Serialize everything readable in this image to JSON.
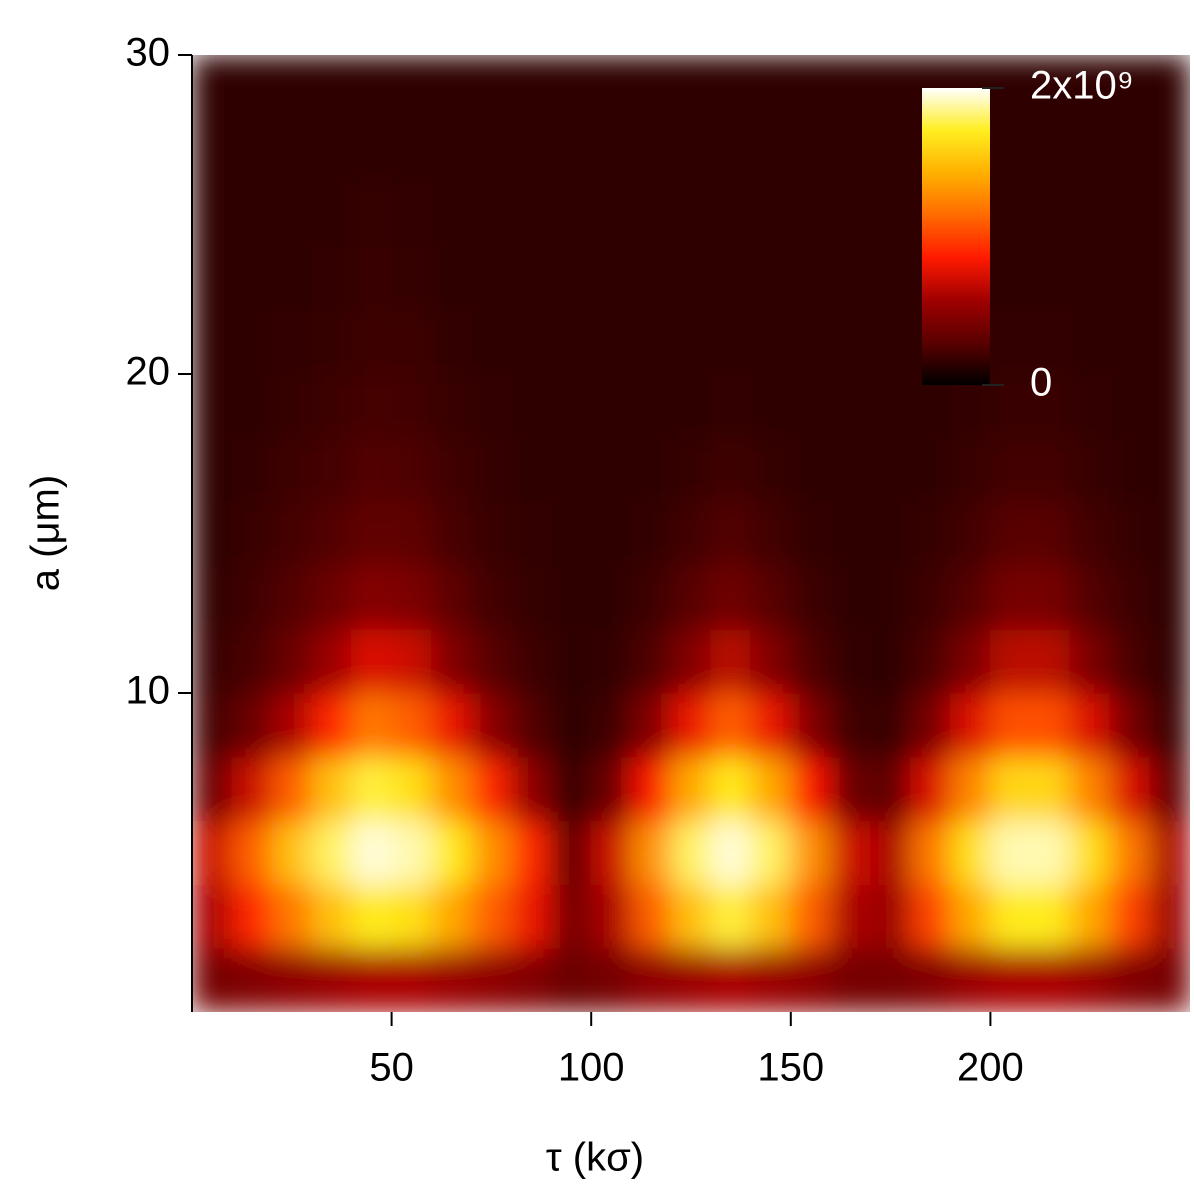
{
  "chart_data": {
    "type": "heatmap",
    "x_label": "τ (kσ)",
    "y_label": "a (μm)",
    "xlim": [
      0,
      250
    ],
    "ylim": [
      0,
      30
    ],
    "xticks": [
      50,
      100,
      150,
      200
    ],
    "yticks": [
      10,
      20,
      30
    ],
    "zlim": [
      0,
      2000000000.0
    ],
    "zticks": [
      0,
      {
        "value": 2000000000.0,
        "label": "2x10⁹"
      }
    ],
    "colormap": [
      "#000000",
      "#5a0000",
      "#a00000",
      "#ff1a00",
      "#ff6a00",
      "#ffb000",
      "#ffee20",
      "#ffffff"
    ],
    "x": [
      5,
      15,
      25,
      35,
      45,
      55,
      65,
      75,
      85,
      95,
      105,
      115,
      125,
      135,
      145,
      155,
      165,
      175,
      185,
      195,
      205,
      215,
      225,
      235,
      245
    ],
    "y": [
      1,
      3,
      5,
      7,
      9,
      11,
      13,
      15,
      17,
      19,
      21,
      23,
      25,
      27,
      29
    ],
    "z": [
      [
        400000000.0,
        600000000.0,
        700000000.0,
        350000000.0,
        220000000.0,
        180000000.0,
        160000000.0,
        150000000.0,
        150000000.0,
        150000000.0,
        150000000.0,
        150000000.0,
        150000000.0,
        150000000.0,
        150000000.0
      ],
      [
        450000000.0,
        900000000.0,
        1100000000.0,
        700000000.0,
        350000000.0,
        230000000.0,
        200000000.0,
        180000000.0,
        160000000.0,
        150000000.0,
        150000000.0,
        150000000.0,
        150000000.0,
        150000000.0,
        150000000.0
      ],
      [
        500000000.0,
        1200000000.0,
        1500000000.0,
        1100000000.0,
        600000000.0,
        350000000.0,
        260000000.0,
        220000000.0,
        190000000.0,
        170000000.0,
        160000000.0,
        150000000.0,
        150000000.0,
        150000000.0,
        150000000.0
      ],
      [
        550000000.0,
        1500000000.0,
        1800000000.0,
        1500000000.0,
        900000000.0,
        550000000.0,
        360000000.0,
        260000000.0,
        220000000.0,
        190000000.0,
        170000000.0,
        160000000.0,
        150000000.0,
        150000000.0,
        150000000.0
      ],
      [
        600000000.0,
        1700000000.0,
        1950000000.0,
        1750000000.0,
        1200000000.0,
        750000000.0,
        460000000.0,
        320000000.0,
        260000000.0,
        220000000.0,
        190000000.0,
        180000000.0,
        170000000.0,
        150000000.0,
        150000000.0
      ],
      [
        600000000.0,
        1650000000.0,
        1900000000.0,
        1650000000.0,
        1100000000.0,
        700000000.0,
        430000000.0,
        300000000.0,
        250000000.0,
        210000000.0,
        190000000.0,
        170000000.0,
        160000000.0,
        150000000.0,
        150000000.0
      ],
      [
        550000000.0,
        1400000000.0,
        1700000000.0,
        1300000000.0,
        800000000.0,
        450000000.0,
        300000000.0,
        230000000.0,
        200000000.0,
        180000000.0,
        160000000.0,
        150000000.0,
        150000000.0,
        150000000.0,
        150000000.0
      ],
      [
        500000000.0,
        1100000000.0,
        1300000000.0,
        900000000.0,
        480000000.0,
        280000000.0,
        210000000.0,
        180000000.0,
        170000000.0,
        160000000.0,
        150000000.0,
        150000000.0,
        150000000.0,
        150000000.0,
        150000000.0
      ],
      [
        450000000.0,
        800000000.0,
        900000000.0,
        500000000.0,
        260000000.0,
        190000000.0,
        170000000.0,
        160000000.0,
        150000000.0,
        150000000.0,
        150000000.0,
        150000000.0,
        150000000.0,
        150000000.0,
        150000000.0
      ],
      [
        350000000.0,
        400000000.0,
        300000000.0,
        180000000.0,
        150000000.0,
        150000000.0,
        150000000.0,
        150000000.0,
        150000000.0,
        150000000.0,
        150000000.0,
        150000000.0,
        150000000.0,
        150000000.0,
        150000000.0
      ],
      [
        400000000.0,
        600000000.0,
        700000000.0,
        350000000.0,
        200000000.0,
        160000000.0,
        150000000.0,
        150000000.0,
        150000000.0,
        150000000.0,
        150000000.0,
        150000000.0,
        150000000.0,
        150000000.0,
        150000000.0
      ],
      [
        500000000.0,
        1100000000.0,
        1300000000.0,
        850000000.0,
        450000000.0,
        250000000.0,
        190000000.0,
        160000000.0,
        150000000.0,
        150000000.0,
        150000000.0,
        150000000.0,
        150000000.0,
        150000000.0,
        150000000.0
      ],
      [
        550000000.0,
        1500000000.0,
        1800000000.0,
        1400000000.0,
        800000000.0,
        450000000.0,
        280000000.0,
        210000000.0,
        170000000.0,
        150000000.0,
        150000000.0,
        150000000.0,
        150000000.0,
        150000000.0,
        150000000.0
      ],
      [
        600000000.0,
        1750000000.0,
        1950000000.0,
        1700000000.0,
        1100000000.0,
        650000000.0,
        370000000.0,
        260000000.0,
        200000000.0,
        160000000.0,
        150000000.0,
        150000000.0,
        150000000.0,
        150000000.0,
        150000000.0
      ],
      [
        550000000.0,
        1500000000.0,
        1800000000.0,
        1400000000.0,
        800000000.0,
        450000000.0,
        280000000.0,
        210000000.0,
        170000000.0,
        150000000.0,
        150000000.0,
        150000000.0,
        150000000.0,
        150000000.0,
        150000000.0
      ],
      [
        500000000.0,
        1100000000.0,
        1300000000.0,
        850000000.0,
        450000000.0,
        250000000.0,
        190000000.0,
        160000000.0,
        150000000.0,
        150000000.0,
        150000000.0,
        150000000.0,
        150000000.0,
        150000000.0,
        150000000.0
      ],
      [
        400000000.0,
        600000000.0,
        700000000.0,
        350000000.0,
        200000000.0,
        160000000.0,
        150000000.0,
        150000000.0,
        150000000.0,
        150000000.0,
        150000000.0,
        150000000.0,
        150000000.0,
        150000000.0,
        150000000.0
      ],
      [
        400000000.0,
        550000000.0,
        600000000.0,
        300000000.0,
        180000000.0,
        150000000.0,
        150000000.0,
        150000000.0,
        150000000.0,
        150000000.0,
        150000000.0,
        150000000.0,
        150000000.0,
        150000000.0,
        150000000.0
      ],
      [
        450000000.0,
        1000000000.0,
        1200000000.0,
        750000000.0,
        400000000.0,
        240000000.0,
        190000000.0,
        170000000.0,
        150000000.0,
        150000000.0,
        150000000.0,
        150000000.0,
        150000000.0,
        150000000.0,
        150000000.0
      ],
      [
        550000000.0,
        1400000000.0,
        1650000000.0,
        1250000000.0,
        750000000.0,
        420000000.0,
        270000000.0,
        210000000.0,
        180000000.0,
        160000000.0,
        150000000.0,
        150000000.0,
        150000000.0,
        150000000.0,
        150000000.0
      ],
      [
        600000000.0,
        1700000000.0,
        1900000000.0,
        1600000000.0,
        1050000000.0,
        650000000.0,
        400000000.0,
        280000000.0,
        210000000.0,
        180000000.0,
        160000000.0,
        150000000.0,
        150000000.0,
        150000000.0,
        150000000.0
      ],
      [
        600000000.0,
        1700000000.0,
        1900000000.0,
        1600000000.0,
        1050000000.0,
        650000000.0,
        400000000.0,
        280000000.0,
        210000000.0,
        180000000.0,
        160000000.0,
        150000000.0,
        150000000.0,
        150000000.0,
        150000000.0
      ],
      [
        550000000.0,
        1400000000.0,
        1650000000.0,
        1250000000.0,
        750000000.0,
        420000000.0,
        270000000.0,
        210000000.0,
        180000000.0,
        160000000.0,
        150000000.0,
        150000000.0,
        150000000.0,
        150000000.0,
        150000000.0
      ],
      [
        450000000.0,
        1000000000.0,
        1200000000.0,
        750000000.0,
        400000000.0,
        240000000.0,
        190000000.0,
        170000000.0,
        150000000.0,
        150000000.0,
        150000000.0,
        150000000.0,
        150000000.0,
        150000000.0,
        150000000.0
      ],
      [
        400000000.0,
        550000000.0,
        600000000.0,
        300000000.0,
        180000000.0,
        150000000.0,
        150000000.0,
        150000000.0,
        150000000.0,
        150000000.0,
        150000000.0,
        150000000.0,
        150000000.0,
        150000000.0,
        150000000.0
      ]
    ]
  }
}
